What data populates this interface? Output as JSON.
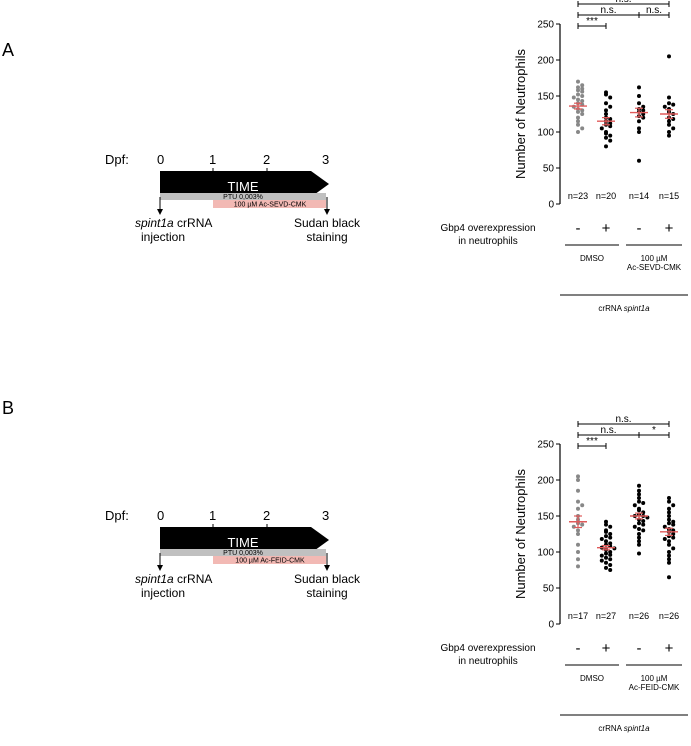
{
  "panels": [
    {
      "letter": "A",
      "timeline": {
        "dpf_label": "Dpf:",
        "ticks": [
          "0",
          "1",
          "2",
          "3"
        ],
        "arrow_label": "TIME",
        "ptu_label": "PTU 0,003%",
        "treatment_label": "100 µM Ac-SEVD-CMK",
        "start_event": {
          "italic": "spint1a",
          "rest": " crRNA",
          "line2": "injection"
        },
        "end_event": {
          "line1": "Sudan black",
          "line2": "staining"
        }
      },
      "chart_data": {
        "type": "scatter",
        "ylabel": "Number of Neutrophils",
        "ylim": [
          0,
          250
        ],
        "yticks": [
          "0",
          "50",
          "100",
          "150",
          "200",
          "250"
        ],
        "groups": [
          {
            "n_label": "n=23",
            "sign": "-",
            "color": "#888888",
            "mean": 136,
            "sem": 4,
            "values": [
              170,
              165,
              162,
              160,
              158,
              156,
              152,
              150,
              148,
              145,
              143,
              140,
              138,
              135,
              132,
              130,
              128,
              125,
              120,
              115,
              110,
              105,
              100
            ]
          },
          {
            "n_label": "n=20",
            "sign": "+",
            "color": "#000000",
            "mean": 115,
            "sem": 5,
            "values": [
              155,
              152,
              148,
              140,
              135,
              130,
              125,
              120,
              118,
              115,
              112,
              110,
              108,
              105,
              100,
              98,
              95,
              92,
              88,
              80
            ]
          },
          {
            "n_label": "n=14",
            "sign": "-",
            "color": "#000000",
            "mean": 127,
            "sem": 6,
            "values": [
              162,
              150,
              140,
              135,
              132,
              130,
              128,
              125,
              122,
              120,
              115,
              105,
              100,
              60
            ]
          },
          {
            "n_label": "n=15",
            "sign": "+",
            "color": "#000000",
            "mean": 125,
            "sem": 6,
            "values": [
              205,
              148,
              140,
              138,
              135,
              132,
              128,
              125,
              120,
              118,
              115,
              110,
              105,
              100,
              95
            ]
          }
        ],
        "mean_color": "#e05a5a",
        "significance": [
          {
            "from": 0,
            "to": 1,
            "label": "***",
            "level": 0
          },
          {
            "from": 0,
            "to": 2,
            "label": "n.s.",
            "level": 1
          },
          {
            "from": 2,
            "to": 3,
            "label": "n.s.",
            "level": 1
          },
          {
            "from": 0,
            "to": 3,
            "label": "n.s.",
            "level": 2
          }
        ],
        "overexpression_label": [
          "Gbp4 overexpression",
          "in neutrophils"
        ],
        "treatment_groups": [
          {
            "label": [
              "DMSO"
            ],
            "from": 0,
            "to": 1
          },
          {
            "label": [
              "100 µM",
              "Ac-SEVD-CMK"
            ],
            "from": 2,
            "to": 3
          }
        ],
        "bottom_label": {
          "plain": "crRNA ",
          "italic": "spint1a"
        }
      }
    },
    {
      "letter": "B",
      "timeline": {
        "dpf_label": "Dpf:",
        "ticks": [
          "0",
          "1",
          "2",
          "3"
        ],
        "arrow_label": "TIME",
        "ptu_label": "PTU 0,003%",
        "treatment_label": "100 µM Ac-FEID-CMK",
        "start_event": {
          "italic": "spint1a",
          "rest": " crRNA",
          "line2": "injection"
        },
        "end_event": {
          "line1": "Sudan black",
          "line2": "staining"
        }
      },
      "chart_data": {
        "type": "scatter",
        "ylabel": "Number of Neutrophils",
        "ylim": [
          0,
          250
        ],
        "yticks": [
          "0",
          "50",
          "100",
          "150",
          "200",
          "250"
        ],
        "groups": [
          {
            "n_label": "n=17",
            "sign": "-",
            "color": "#888888",
            "mean": 142,
            "sem": 8,
            "values": [
              205,
              200,
              185,
              170,
              165,
              160,
              150,
              145,
              140,
              138,
              135,
              130,
              125,
              110,
              100,
              90,
              80
            ]
          },
          {
            "n_label": "n=27",
            "sign": "+",
            "color": "#000000",
            "mean": 106,
            "sem": 3,
            "values": [
              142,
              138,
              135,
              130,
              128,
              125,
              122,
              120,
              118,
              115,
              112,
              110,
              108,
              106,
              105,
              103,
              100,
              98,
              96,
              95,
              92,
              90,
              88,
              85,
              82,
              78,
              75
            ]
          },
          {
            "n_label": "n=26",
            "sign": "-",
            "color": "#000000",
            "mean": 150,
            "sem": 4,
            "values": [
              192,
              185,
              180,
              175,
              170,
              168,
              165,
              160,
              158,
              155,
              152,
              150,
              150,
              148,
              145,
              143,
              140,
              138,
              135,
              132,
              130,
              125,
              120,
              115,
              110,
              98
            ]
          },
          {
            "n_label": "n=26",
            "sign": "+",
            "color": "#000000",
            "mean": 128,
            "sem": 5,
            "values": [
              175,
              170,
              165,
              160,
              155,
              150,
              145,
              142,
              140,
              138,
              135,
              132,
              130,
              128,
              125,
              122,
              120,
              118,
              115,
              110,
              105,
              100,
              95,
              90,
              85,
              65
            ]
          }
        ],
        "mean_color": "#e05a5a",
        "significance": [
          {
            "from": 0,
            "to": 1,
            "label": "***",
            "level": 0
          },
          {
            "from": 0,
            "to": 2,
            "label": "n.s.",
            "level": 1
          },
          {
            "from": 2,
            "to": 3,
            "label": "*",
            "level": 1
          },
          {
            "from": 0,
            "to": 3,
            "label": "n.s.",
            "level": 2
          }
        ],
        "overexpression_label": [
          "Gbp4 overexpression",
          "in neutrophils"
        ],
        "treatment_groups": [
          {
            "label": [
              "DMSO"
            ],
            "from": 0,
            "to": 1
          },
          {
            "label": [
              "100 µM",
              "Ac-FEID-CMK"
            ],
            "from": 2,
            "to": 3
          }
        ],
        "bottom_label": {
          "plain": "crRNA ",
          "italic": "spint1a"
        }
      }
    }
  ]
}
